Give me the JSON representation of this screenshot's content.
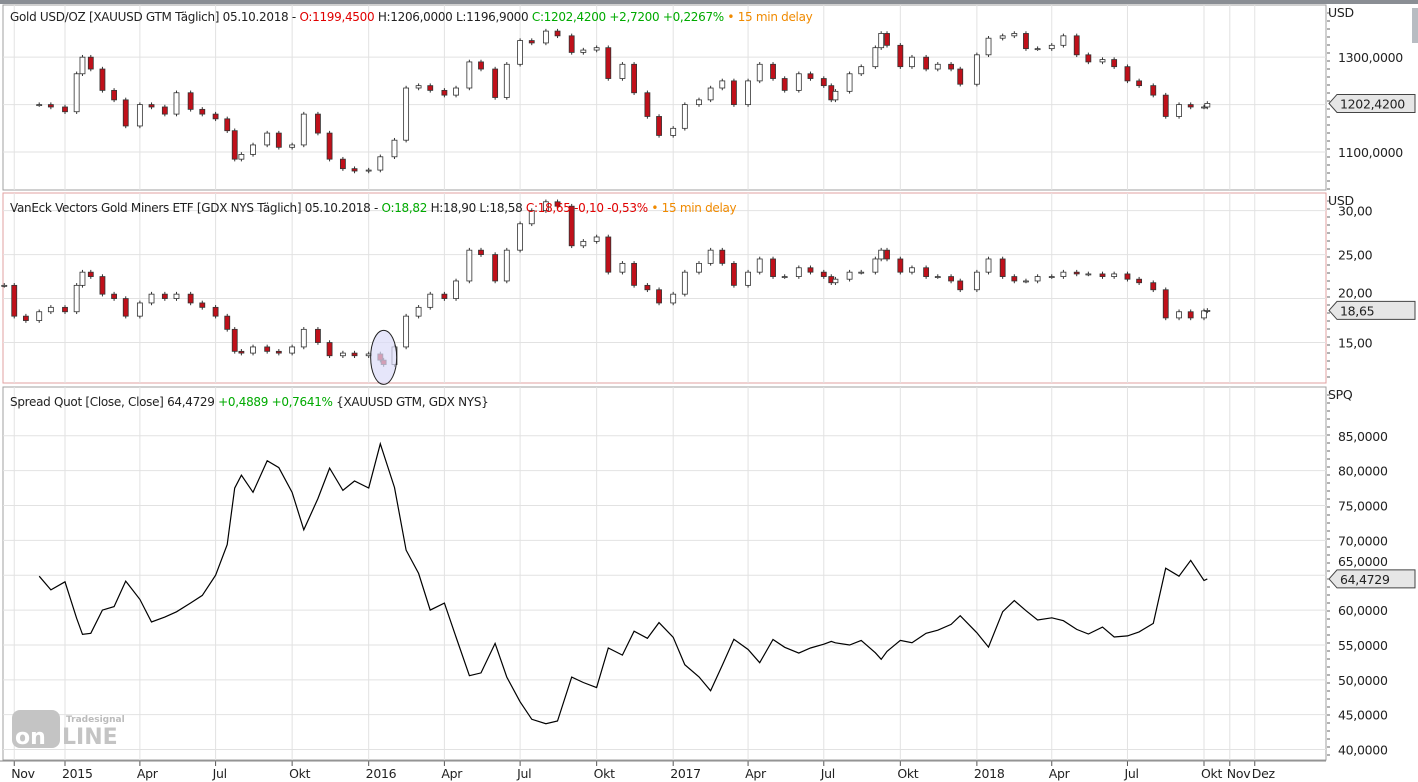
{
  "panels": {
    "gold": {
      "name": "Gold USD/OZ [XAUUSD GTM Täglich] 05.10.2018 -",
      "open": "O:1199,4500",
      "high": "H:1206,0000",
      "low": "L:1196,9000",
      "close": "C:1202,4200 +2,7200 +0,2267%",
      "delay": "• 15 min delay",
      "unit": "USD",
      "last_tag": "1202,4200"
    },
    "gdx": {
      "name": "VanEck Vectors Gold Miners ETF [GDX NYS Täglich] 05.10.2018 -",
      "open": "O:18,82",
      "high": "H:18,90",
      "low": "L:18,58",
      "close": "C:18,65 -0,10 -0,53%",
      "delay": "• 15 min delay",
      "unit": "USD",
      "last_tag": "18,65"
    },
    "spread": {
      "name": "Spread Quot [Close, Close]",
      "value": "64,4729",
      "change": "+0,4889 +0,7641%",
      "sources": "{XAUUSD GTM, GDX NYS}",
      "unit": "SPQ",
      "last_tag": "64,4729"
    }
  },
  "logo": {
    "brand": "Tradesignal",
    "product": "online"
  },
  "colors": {
    "up": "#ffffff",
    "down": "#c0101a",
    "outline": "#333333",
    "grid": "#e2e2e2",
    "tag_fill": "#e6e6e6",
    "highlight": "#dcdcf8"
  },
  "chart_data": {
    "type": "candlestick+line",
    "x_ticks": [
      {
        "label": "Nov",
        "date": "2014-11-01"
      },
      {
        "label": "2015",
        "date": "2015-01-01"
      },
      {
        "label": "Apr",
        "date": "2015-04-01"
      },
      {
        "label": "Jul",
        "date": "2015-07-01"
      },
      {
        "label": "Okt",
        "date": "2015-10-01"
      },
      {
        "label": "2016",
        "date": "2016-01-01"
      },
      {
        "label": "Apr",
        "date": "2016-04-01"
      },
      {
        "label": "Jul",
        "date": "2016-07-01"
      },
      {
        "label": "Okt",
        "date": "2016-10-01"
      },
      {
        "label": "2017",
        "date": "2017-01-01"
      },
      {
        "label": "Apr",
        "date": "2017-04-01"
      },
      {
        "label": "Jul",
        "date": "2017-07-01"
      },
      {
        "label": "Okt",
        "date": "2017-10-01"
      },
      {
        "label": "2018",
        "date": "2018-01-01"
      },
      {
        "label": "Apr",
        "date": "2018-04-01"
      },
      {
        "label": "Jul",
        "date": "2018-07-01"
      },
      {
        "label": "Okt",
        "date": "2018-10-01"
      },
      {
        "label": "Nov",
        "date": "2018-11-01"
      },
      {
        "label": "Dez",
        "date": "2018-12-01"
      }
    ],
    "gold": {
      "ylim": [
        1020,
        1410
      ],
      "y_ticks": [
        {
          "v": 1100,
          "label": "1100,0000"
        },
        {
          "v": 1300,
          "label": "1300,0000"
        }
      ],
      "grid": [
        1100,
        1200,
        1300
      ],
      "series": [
        [
          "2014-12-01",
          1200
        ],
        [
          "2014-12-15",
          1195
        ],
        [
          "2015-01-01",
          1185
        ],
        [
          "2015-01-15",
          1265
        ],
        [
          "2015-01-22",
          1300
        ],
        [
          "2015-02-01",
          1275
        ],
        [
          "2015-02-15",
          1230
        ],
        [
          "2015-03-01",
          1210
        ],
        [
          "2015-03-15",
          1155
        ],
        [
          "2015-04-01",
          1200
        ],
        [
          "2015-04-15",
          1195
        ],
        [
          "2015-05-01",
          1180
        ],
        [
          "2015-05-15",
          1225
        ],
        [
          "2015-06-01",
          1190
        ],
        [
          "2015-06-15",
          1180
        ],
        [
          "2015-07-01",
          1170
        ],
        [
          "2015-07-15",
          1145
        ],
        [
          "2015-07-24",
          1085
        ],
        [
          "2015-08-01",
          1095
        ],
        [
          "2015-08-15",
          1115
        ],
        [
          "2015-09-01",
          1140
        ],
        [
          "2015-09-15",
          1110
        ],
        [
          "2015-10-01",
          1115
        ],
        [
          "2015-10-15",
          1180
        ],
        [
          "2015-11-01",
          1140
        ],
        [
          "2015-11-15",
          1085
        ],
        [
          "2015-12-01",
          1065
        ],
        [
          "2015-12-15",
          1060
        ],
        [
          "2016-01-01",
          1062
        ],
        [
          "2016-01-15",
          1090
        ],
        [
          "2016-02-01",
          1125
        ],
        [
          "2016-02-15",
          1235
        ],
        [
          "2016-03-01",
          1240
        ],
        [
          "2016-03-15",
          1230
        ],
        [
          "2016-04-01",
          1220
        ],
        [
          "2016-04-15",
          1235
        ],
        [
          "2016-05-01",
          1290
        ],
        [
          "2016-05-15",
          1275
        ],
        [
          "2016-06-01",
          1215
        ],
        [
          "2016-06-15",
          1285
        ],
        [
          "2016-07-01",
          1335
        ],
        [
          "2016-07-15",
          1330
        ],
        [
          "2016-08-01",
          1355
        ],
        [
          "2016-08-15",
          1345
        ],
        [
          "2016-09-01",
          1310
        ],
        [
          "2016-09-15",
          1315
        ],
        [
          "2016-10-01",
          1320
        ],
        [
          "2016-10-15",
          1255
        ],
        [
          "2016-11-01",
          1285
        ],
        [
          "2016-11-15",
          1225
        ],
        [
          "2016-12-01",
          1175
        ],
        [
          "2016-12-15",
          1135
        ],
        [
          "2017-01-01",
          1150
        ],
        [
          "2017-01-15",
          1200
        ],
        [
          "2017-02-01",
          1210
        ],
        [
          "2017-02-15",
          1235
        ],
        [
          "2017-03-01",
          1250
        ],
        [
          "2017-03-15",
          1200
        ],
        [
          "2017-04-01",
          1250
        ],
        [
          "2017-04-15",
          1285
        ],
        [
          "2017-05-01",
          1255
        ],
        [
          "2017-05-15",
          1230
        ],
        [
          "2017-06-01",
          1265
        ],
        [
          "2017-06-15",
          1255
        ],
        [
          "2017-07-01",
          1240
        ],
        [
          "2017-07-10",
          1210
        ],
        [
          "2017-07-15",
          1228
        ],
        [
          "2017-08-01",
          1265
        ],
        [
          "2017-08-15",
          1280
        ],
        [
          "2017-09-01",
          1320
        ],
        [
          "2017-09-08",
          1350
        ],
        [
          "2017-09-15",
          1325
        ],
        [
          "2017-10-01",
          1280
        ],
        [
          "2017-10-15",
          1300
        ],
        [
          "2017-11-01",
          1275
        ],
        [
          "2017-11-15",
          1285
        ],
        [
          "2017-12-01",
          1275
        ],
        [
          "2017-12-12",
          1243
        ],
        [
          "2018-01-01",
          1305
        ],
        [
          "2018-01-15",
          1340
        ],
        [
          "2018-02-01",
          1345
        ],
        [
          "2018-02-15",
          1350
        ],
        [
          "2018-03-01",
          1318
        ],
        [
          "2018-03-15",
          1318
        ],
        [
          "2018-04-01",
          1325
        ],
        [
          "2018-04-15",
          1345
        ],
        [
          "2018-05-01",
          1305
        ],
        [
          "2018-05-15",
          1290
        ],
        [
          "2018-06-01",
          1295
        ],
        [
          "2018-06-15",
          1280
        ],
        [
          "2018-07-01",
          1250
        ],
        [
          "2018-07-15",
          1240
        ],
        [
          "2018-08-01",
          1220
        ],
        [
          "2018-08-16",
          1175
        ],
        [
          "2018-09-01",
          1200
        ],
        [
          "2018-09-15",
          1195
        ],
        [
          "2018-10-01",
          1195
        ],
        [
          "2018-10-05",
          1202.42
        ]
      ]
    },
    "gdx": {
      "ylim": [
        10.4,
        32.0
      ],
      "y_ticks": [
        {
          "v": 15,
          "label": "15,00"
        },
        {
          "v": 20,
          "label": "20,00"
        },
        {
          "v": 25,
          "label": "25,00"
        },
        {
          "v": 30,
          "label": "30,00"
        }
      ],
      "grid": [
        15,
        20,
        25,
        30
      ],
      "annotation": {
        "type": "ellipse",
        "date": "2016-01-19",
        "value": 13.2
      },
      "series": [
        [
          "2014-10-20",
          21.5
        ],
        [
          "2014-11-01",
          18.0
        ],
        [
          "2014-11-15",
          17.5
        ],
        [
          "2014-12-01",
          18.5
        ],
        [
          "2014-12-15",
          19.0
        ],
        [
          "2015-01-01",
          18.5
        ],
        [
          "2015-01-15",
          21.5
        ],
        [
          "2015-01-22",
          23.0
        ],
        [
          "2015-02-01",
          22.5
        ],
        [
          "2015-02-15",
          20.5
        ],
        [
          "2015-03-01",
          20.0
        ],
        [
          "2015-03-15",
          18.0
        ],
        [
          "2015-04-01",
          19.5
        ],
        [
          "2015-04-15",
          20.5
        ],
        [
          "2015-05-01",
          20.0
        ],
        [
          "2015-05-15",
          20.5
        ],
        [
          "2015-06-01",
          19.5
        ],
        [
          "2015-06-15",
          19.0
        ],
        [
          "2015-07-01",
          18.0
        ],
        [
          "2015-07-15",
          16.5
        ],
        [
          "2015-07-24",
          14.0
        ],
        [
          "2015-08-01",
          13.8
        ],
        [
          "2015-08-15",
          14.5
        ],
        [
          "2015-09-01",
          14.0
        ],
        [
          "2015-09-15",
          13.8
        ],
        [
          "2015-10-01",
          14.5
        ],
        [
          "2015-10-15",
          16.5
        ],
        [
          "2015-11-01",
          15.0
        ],
        [
          "2015-11-15",
          13.5
        ],
        [
          "2015-12-01",
          13.8
        ],
        [
          "2015-12-15",
          13.5
        ],
        [
          "2016-01-01",
          13.7
        ],
        [
          "2016-01-15",
          13.0
        ],
        [
          "2016-01-19",
          12.5
        ],
        [
          "2016-02-01",
          14.5
        ],
        [
          "2016-02-15",
          18.0
        ],
        [
          "2016-03-01",
          19.0
        ],
        [
          "2016-03-15",
          20.5
        ],
        [
          "2016-04-01",
          20.0
        ],
        [
          "2016-04-15",
          22.0
        ],
        [
          "2016-05-01",
          25.5
        ],
        [
          "2016-05-15",
          25.0
        ],
        [
          "2016-06-01",
          22.0
        ],
        [
          "2016-06-15",
          25.5
        ],
        [
          "2016-07-01",
          28.5
        ],
        [
          "2016-07-15",
          30.0
        ],
        [
          "2016-08-01",
          31.0
        ],
        [
          "2016-08-15",
          30.5
        ],
        [
          "2016-09-01",
          26.0
        ],
        [
          "2016-09-15",
          26.5
        ],
        [
          "2016-10-01",
          27.0
        ],
        [
          "2016-10-15",
          23.0
        ],
        [
          "2016-11-01",
          24.0
        ],
        [
          "2016-11-15",
          21.5
        ],
        [
          "2016-12-01",
          21.0
        ],
        [
          "2016-12-15",
          19.5
        ],
        [
          "2017-01-01",
          20.5
        ],
        [
          "2017-01-15",
          23.0
        ],
        [
          "2017-02-01",
          24.0
        ],
        [
          "2017-02-15",
          25.5
        ],
        [
          "2017-03-01",
          24.0
        ],
        [
          "2017-03-15",
          21.5
        ],
        [
          "2017-04-01",
          23.0
        ],
        [
          "2017-04-15",
          24.5
        ],
        [
          "2017-05-01",
          22.5
        ],
        [
          "2017-05-15",
          22.5
        ],
        [
          "2017-06-01",
          23.5
        ],
        [
          "2017-06-15",
          23.0
        ],
        [
          "2017-07-01",
          22.5
        ],
        [
          "2017-07-10",
          21.8
        ],
        [
          "2017-07-15",
          22.2
        ],
        [
          "2017-08-01",
          23.0
        ],
        [
          "2017-08-15",
          23.0
        ],
        [
          "2017-09-01",
          24.5
        ],
        [
          "2017-09-08",
          25.5
        ],
        [
          "2017-09-15",
          24.5
        ],
        [
          "2017-10-01",
          23.0
        ],
        [
          "2017-10-15",
          23.5
        ],
        [
          "2017-11-01",
          22.5
        ],
        [
          "2017-11-15",
          22.5
        ],
        [
          "2017-12-01",
          22.0
        ],
        [
          "2017-12-12",
          21.0
        ],
        [
          "2018-01-01",
          23.0
        ],
        [
          "2018-01-15",
          24.5
        ],
        [
          "2018-02-01",
          22.5
        ],
        [
          "2018-02-15",
          22.0
        ],
        [
          "2018-03-01",
          22.0
        ],
        [
          "2018-03-15",
          22.5
        ],
        [
          "2018-04-01",
          22.5
        ],
        [
          "2018-04-15",
          23.0
        ],
        [
          "2018-05-01",
          22.8
        ],
        [
          "2018-05-15",
          22.8
        ],
        [
          "2018-06-01",
          22.5
        ],
        [
          "2018-06-15",
          22.8
        ],
        [
          "2018-07-01",
          22.2
        ],
        [
          "2018-07-15",
          21.8
        ],
        [
          "2018-08-01",
          21.0
        ],
        [
          "2018-08-16",
          17.8
        ],
        [
          "2018-09-01",
          18.5
        ],
        [
          "2018-09-15",
          17.8
        ],
        [
          "2018-10-01",
          18.6
        ],
        [
          "2018-10-05",
          18.65
        ]
      ]
    },
    "spread": {
      "formula": "gold close / gdx close",
      "ylim": [
        38.5,
        92
      ],
      "y_ticks": [
        {
          "v": 40,
          "label": "40,0000"
        },
        {
          "v": 45,
          "label": "45,0000"
        },
        {
          "v": 50,
          "label": "50,0000"
        },
        {
          "v": 55,
          "label": "55,0000"
        },
        {
          "v": 60,
          "label": "60,0000"
        },
        {
          "v": 65,
          "label": "65,0000"
        },
        {
          "v": 70,
          "label": "70,0000"
        },
        {
          "v": 75,
          "label": "75,0000"
        },
        {
          "v": 80,
          "label": "80,0000"
        },
        {
          "v": 85,
          "label": "85,0000"
        }
      ],
      "last": 64.4729
    }
  }
}
